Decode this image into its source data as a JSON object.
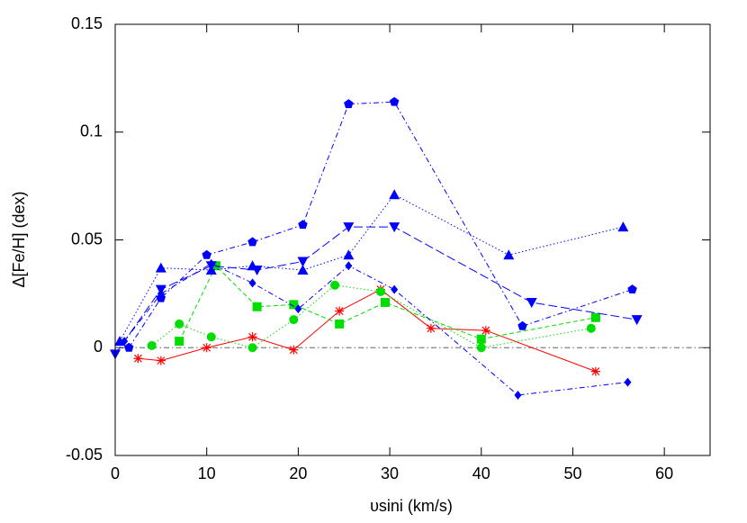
{
  "chart_data": {
    "type": "line",
    "x_label": "υsini (km/s)",
    "y_label": "Δ[Fe/H] (dex)",
    "xlim": [
      0,
      65
    ],
    "ylim": [
      -0.05,
      0.15
    ],
    "xticks": [
      0,
      10,
      20,
      30,
      40,
      50,
      60
    ],
    "yticks": [
      -0.05,
      0,
      0.05,
      0.1,
      0.15
    ],
    "reference_line": {
      "value": 0,
      "color": "#808080",
      "line_style": "dashdot"
    },
    "series": [
      {
        "color": "#ff0000",
        "marker": "star",
        "line_style": "solid",
        "x": [
          2.5,
          5,
          10,
          15,
          19.5,
          24.5,
          29,
          34.5,
          40.5,
          52.5
        ],
        "values": [
          -0.005,
          -0.006,
          0,
          0.005,
          -0.001,
          0.017,
          0.027,
          0.009,
          0.008,
          -0.011
        ]
      },
      {
        "color": "#00dd00",
        "marker": "square",
        "line_style": "dashed",
        "x": [
          7,
          11,
          15.5,
          19.5,
          24.5,
          29.5,
          40,
          52.5
        ],
        "values": [
          0.003,
          0.038,
          0.019,
          0.02,
          0.011,
          0.021,
          0.004,
          0.014
        ]
      },
      {
        "color": "#00dd00",
        "marker": "circle",
        "line_style": "dotted",
        "x": [
          4,
          7,
          10.5,
          15,
          19.5,
          24,
          29,
          40,
          52
        ],
        "values": [
          0.001,
          0.011,
          0.005,
          0,
          0.013,
          0.029,
          0.026,
          0,
          0.009
        ]
      },
      {
        "color": "#0000ff",
        "marker": "pentagon",
        "line_style": "dashdot",
        "x": [
          1.5,
          5,
          10,
          15,
          20.5,
          25.5,
          30.5,
          44.5,
          56.5
        ],
        "values": [
          0,
          0.023,
          0.043,
          0.049,
          0.057,
          0.113,
          0.114,
          0.01,
          0.027
        ]
      },
      {
        "color": "#0000ff",
        "marker": "triangle-up",
        "line_style": "dotted",
        "x": [
          0.5,
          5,
          10.5,
          15,
          20.5,
          25.5,
          30.5,
          43,
          55.5
        ],
        "values": [
          0.003,
          0.037,
          0.036,
          0.038,
          0.036,
          0.043,
          0.071,
          0.043,
          0.056
        ]
      },
      {
        "color": "#0000ff",
        "marker": "triangle-down",
        "line_style": "longdash",
        "x": [
          0,
          5,
          10.5,
          15.5,
          20.5,
          25.5,
          30.5,
          45.5,
          57
        ],
        "values": [
          -0.003,
          0.027,
          0.038,
          0.036,
          0.04,
          0.056,
          0.056,
          0.021,
          0.013
        ]
      },
      {
        "color": "#0000ff",
        "marker": "diamond",
        "line_style": "dashdot",
        "x": [
          1,
          5,
          10.5,
          15,
          20,
          25.5,
          30.5,
          44,
          56
        ],
        "values": [
          0.003,
          0.025,
          0.039,
          0.03,
          0.018,
          0.038,
          0.027,
          -0.022,
          -0.016
        ]
      }
    ]
  }
}
